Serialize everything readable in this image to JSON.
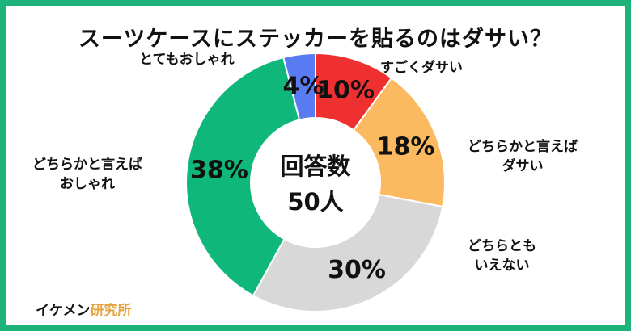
{
  "title": "スーツケースにステッカーを貼るのはダサい？",
  "brand": {
    "part1": "イケメン",
    "part2": "研究所"
  },
  "colors": {
    "border": "#1db37a"
  },
  "chart_data": {
    "type": "pie",
    "donut": true,
    "center_label": [
      "回答数",
      "50人"
    ],
    "slices": [
      {
        "label": "すごくダサい",
        "value": 10,
        "display": "10%",
        "color": "#ee3030"
      },
      {
        "label": "どちらかと言えばダサい",
        "value": 18,
        "display": "18%",
        "color": "#fbb960"
      },
      {
        "label": "どちらともいえない",
        "value": 30,
        "display": "30%",
        "color": "#d8d8d8"
      },
      {
        "label": "どちらかと言えばおしゃれ",
        "value": 38,
        "display": "38%",
        "color": "#0fb87a"
      },
      {
        "label": "とてもおしゃれ",
        "value": 4,
        "display": "4%",
        "color": "#5a7cf2"
      }
    ],
    "labels": [
      {
        "lines": [
          "すごくダサい"
        ]
      },
      {
        "lines": [
          "どちらかと言えば",
          "ダサい"
        ]
      },
      {
        "lines": [
          "どちらとも",
          "いえない"
        ]
      },
      {
        "lines": [
          "どちらかと言えば",
          "おしゃれ"
        ]
      },
      {
        "lines": [
          "とてもおしゃれ"
        ]
      }
    ]
  }
}
